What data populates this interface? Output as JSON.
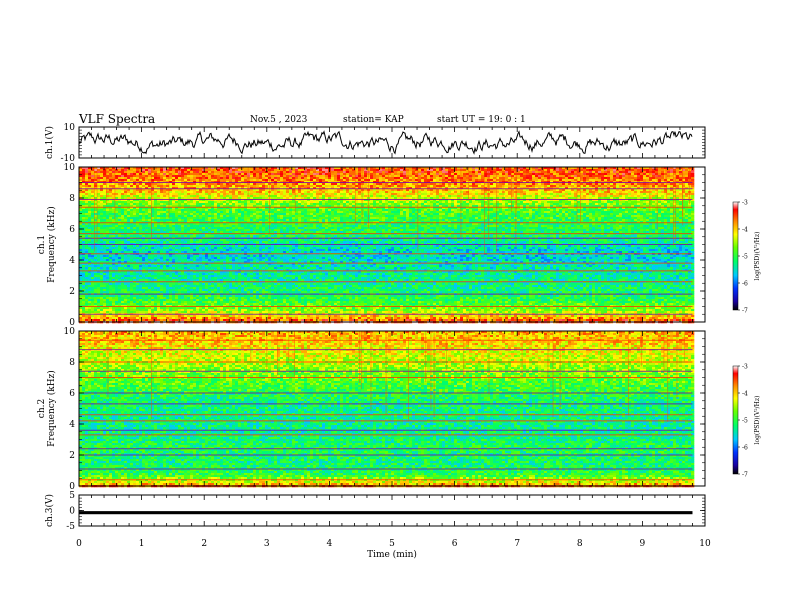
{
  "header": {
    "title": "VLF Spectra",
    "date": "Nov.5 , 2023",
    "station": "station= KAP",
    "start_ut": "start UT = 19: 0 : 1"
  },
  "chart_data": [
    {
      "type": "line",
      "id": "ch1-waveform",
      "ylabel": "ch.1(V)",
      "ylim": [
        -10,
        10
      ],
      "yticks": [
        "10",
        "-10"
      ],
      "xlim": [
        0,
        10
      ],
      "x_extent": [
        0,
        9.8
      ],
      "color": "#000000",
      "note_values": "noisy waveform, approx range -6 to 6 V"
    },
    {
      "type": "heatmap",
      "id": "ch1-spectrogram",
      "ylabel": "ch.1\nFrequency (kHz)",
      "ylim": [
        0,
        10
      ],
      "yticks": [
        "0",
        "2",
        "4",
        "6",
        "8",
        "10"
      ],
      "xlim": [
        0,
        10
      ],
      "x_extent": [
        0,
        9.8
      ],
      "colorbar": {
        "label": "log(PSD)(V²/Hz)",
        "range": [
          -7,
          -3
        ],
        "ticks": [
          "-3",
          "-4",
          "-5",
          "-6",
          "-7"
        ]
      },
      "intensity_profile": [
        {
          "freq": 0.0,
          "level": -3.2
        },
        {
          "freq": 0.3,
          "level": -3.8
        },
        {
          "freq": 0.8,
          "level": -4.6
        },
        {
          "freq": 1.5,
          "level": -5.0
        },
        {
          "freq": 2.5,
          "level": -5.3
        },
        {
          "freq": 3.5,
          "level": -5.4
        },
        {
          "freq": 4.5,
          "level": -5.6
        },
        {
          "freq": 5.5,
          "level": -5.2
        },
        {
          "freq": 6.5,
          "level": -5.0
        },
        {
          "freq": 7.5,
          "level": -4.8
        },
        {
          "freq": 8.5,
          "level": -4.0
        },
        {
          "freq": 9.5,
          "level": -3.6
        },
        {
          "freq": 10.0,
          "level": -3.5
        }
      ],
      "lines_khz": [
        0.5,
        1.0,
        1.8,
        2.6,
        3.3,
        3.8,
        4.4,
        5.0,
        5.4,
        5.7,
        6.4,
        7.4,
        7.9,
        8.6,
        9.0
      ]
    },
    {
      "type": "heatmap",
      "id": "ch2-spectrogram",
      "ylabel": "ch.2\nFrequency (kHz)",
      "ylim": [
        0,
        10
      ],
      "yticks": [
        "0",
        "2",
        "4",
        "6",
        "8",
        "10"
      ],
      "xlim": [
        0,
        10
      ],
      "x_extent": [
        0,
        9.8
      ],
      "colorbar": {
        "label": "log(PSD)(V²/Hz)",
        "range": [
          -7,
          -3
        ],
        "ticks": [
          "-3",
          "-4",
          "-5",
          "-6",
          "-7"
        ]
      },
      "intensity_profile": [
        {
          "freq": 0.0,
          "level": -3.5
        },
        {
          "freq": 0.3,
          "level": -4.2
        },
        {
          "freq": 0.8,
          "level": -5.0
        },
        {
          "freq": 1.5,
          "level": -5.2
        },
        {
          "freq": 2.5,
          "level": -5.1
        },
        {
          "freq": 3.5,
          "level": -5.3
        },
        {
          "freq": 4.5,
          "level": -5.3
        },
        {
          "freq": 5.5,
          "level": -5.2
        },
        {
          "freq": 6.5,
          "level": -4.9
        },
        {
          "freq": 7.5,
          "level": -4.6
        },
        {
          "freq": 8.5,
          "level": -4.3
        },
        {
          "freq": 9.5,
          "level": -4.0
        },
        {
          "freq": 10.0,
          "level": -3.9
        }
      ],
      "lines_khz": [
        0.4,
        1.1,
        2.0,
        2.4,
        3.3,
        3.6,
        4.2,
        4.6,
        5.3,
        6.0,
        7.0,
        7.4,
        8.0,
        8.8,
        9.4
      ]
    },
    {
      "type": "line",
      "id": "ch3-waveform",
      "ylabel": "ch.3(V)",
      "ylim": [
        -5,
        5
      ],
      "yticks": [
        "5",
        "0",
        "-5"
      ],
      "xlim": [
        0,
        10
      ],
      "x_extent": [
        0,
        9.8
      ],
      "value_band": [
        -1.2,
        -0.2
      ],
      "color": "#000000"
    }
  ],
  "xaxis": {
    "label": "Time (min)",
    "ticks": [
      "0",
      "1",
      "2",
      "3",
      "4",
      "5",
      "6",
      "7",
      "8",
      "9",
      "10"
    ]
  }
}
